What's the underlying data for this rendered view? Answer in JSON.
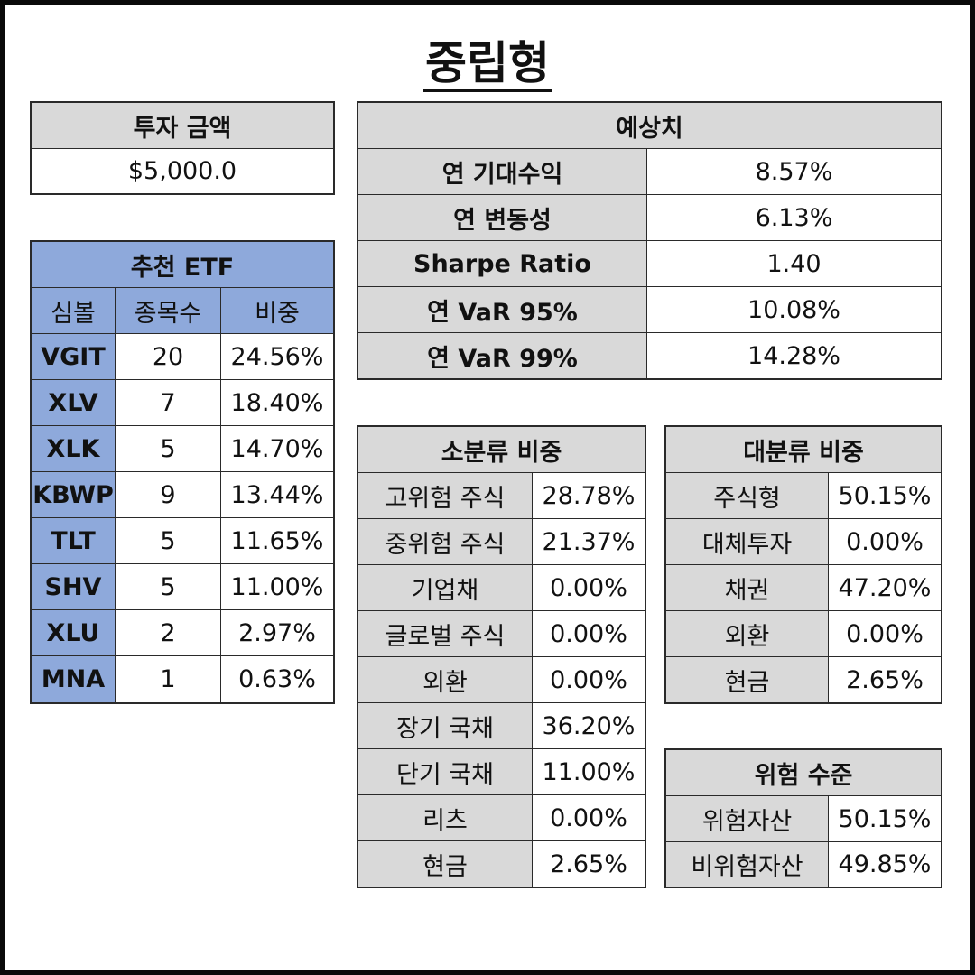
{
  "title": "중립형",
  "investment": {
    "header": "투자 금액",
    "value": "$5,000.0"
  },
  "expected": {
    "header": "예상치",
    "rows": [
      {
        "label": "연 기대수익",
        "value": "8.57%"
      },
      {
        "label": "연 변동성",
        "value": "6.13%"
      },
      {
        "label": "Sharpe Ratio",
        "value": "1.40"
      },
      {
        "label": "연 VaR 95%",
        "value": "10.08%"
      },
      {
        "label": "연 VaR 99%",
        "value": "14.28%"
      }
    ]
  },
  "etf": {
    "header": "추천 ETF",
    "columns": [
      "심볼",
      "종목수",
      "비중"
    ],
    "rows": [
      {
        "symbol": "VGIT",
        "count": "20",
        "weight": "24.56%"
      },
      {
        "symbol": "XLV",
        "count": "7",
        "weight": "18.40%"
      },
      {
        "symbol": "XLK",
        "count": "5",
        "weight": "14.70%"
      },
      {
        "symbol": "KBWP",
        "count": "9",
        "weight": "13.44%"
      },
      {
        "symbol": "TLT",
        "count": "5",
        "weight": "11.65%"
      },
      {
        "symbol": "SHV",
        "count": "5",
        "weight": "11.00%"
      },
      {
        "symbol": "XLU",
        "count": "2",
        "weight": "2.97%"
      },
      {
        "symbol": "MNA",
        "count": "1",
        "weight": "0.63%"
      }
    ]
  },
  "sub_category": {
    "header": "소분류 비중",
    "rows": [
      {
        "label": "고위험 주식",
        "value": "28.78%"
      },
      {
        "label": "중위험 주식",
        "value": "21.37%"
      },
      {
        "label": "기업채",
        "value": "0.00%"
      },
      {
        "label": "글로벌 주식",
        "value": "0.00%"
      },
      {
        "label": "외환",
        "value": "0.00%"
      },
      {
        "label": "장기 국채",
        "value": "36.20%"
      },
      {
        "label": "단기 국채",
        "value": "11.00%"
      },
      {
        "label": "리츠",
        "value": "0.00%"
      },
      {
        "label": "현금",
        "value": "2.65%"
      }
    ]
  },
  "main_category": {
    "header": "대분류 비중",
    "rows": [
      {
        "label": "주식형",
        "value": "50.15%"
      },
      {
        "label": "대체투자",
        "value": "0.00%"
      },
      {
        "label": "채권",
        "value": "47.20%"
      },
      {
        "label": "외환",
        "value": "0.00%"
      },
      {
        "label": "현금",
        "value": "2.65%"
      }
    ]
  },
  "risk": {
    "header": "위험 수준",
    "rows": [
      {
        "label": "위험자산",
        "value": "50.15%"
      },
      {
        "label": "비위험자산",
        "value": "49.85%"
      }
    ]
  },
  "colors": {
    "header_gray": "#d9d9d9",
    "etf_blue": "#8ea9db",
    "border": "#2a2a2a"
  }
}
